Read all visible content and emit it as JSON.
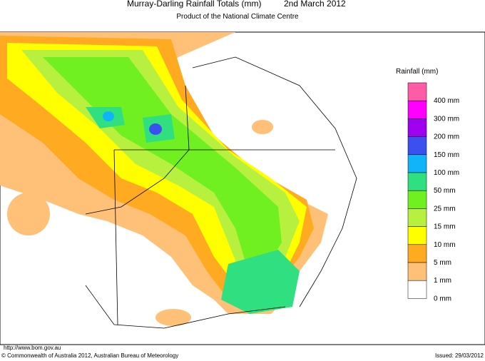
{
  "header": {
    "title": "Murray-Darling Rainfall Totals (mm)",
    "date": "2nd March 2012",
    "subtitle": "Product of the National Climate Centre"
  },
  "legend": {
    "title": "Rainfall (mm)",
    "items": [
      {
        "label": "400 mm",
        "color": "#ff5ca8"
      },
      {
        "label": "300 mm",
        "color": "#ff00ff"
      },
      {
        "label": "200 mm",
        "color": "#a000f0"
      },
      {
        "label": "150 mm",
        "color": "#3c50f0"
      },
      {
        "label": "100 mm",
        "color": "#10b4f8"
      },
      {
        "label": "50 mm",
        "color": "#30e080"
      },
      {
        "label": "25 mm",
        "color": "#70f020"
      },
      {
        "label": "15 mm",
        "color": "#b8f040"
      },
      {
        "label": "10 mm",
        "color": "#ffff00"
      },
      {
        "label": "5 mm",
        "color": "#ffaa20"
      },
      {
        "label": "1 mm",
        "color": "#ffc078"
      },
      {
        "label": "0 mm",
        "color": "#ffffff"
      }
    ]
  },
  "footer": {
    "url": "http://www.bom.gov.au",
    "copyright": "© Commonwealth of Australia 2012, Australian Bureau of Meteorology",
    "issued": "Issued: 29/03/2012"
  }
}
